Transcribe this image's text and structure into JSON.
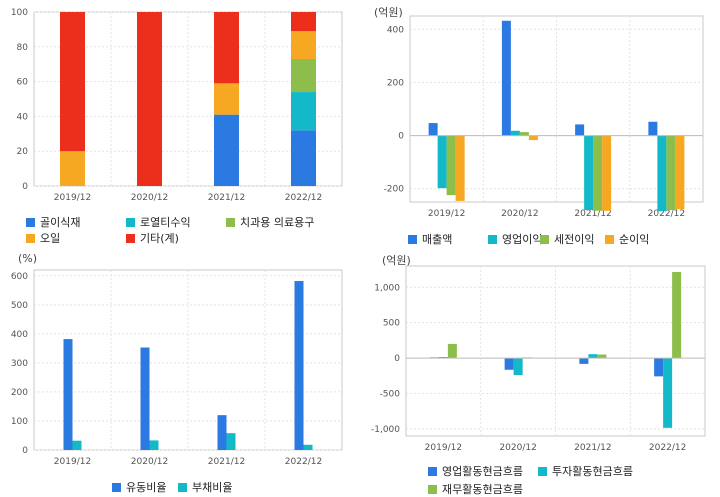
{
  "chart_data": [
    {
      "type": "bar",
      "stacked": true,
      "categories": [
        "2019/12",
        "2020/12",
        "2021/12",
        "2022/12"
      ],
      "ylim": [
        0,
        100
      ],
      "yticks": [
        "0",
        "20",
        "40",
        "60",
        "80",
        "100"
      ],
      "series": [
        {
          "name": "골이식재",
          "color": "#2a7ae2",
          "values": [
            0,
            0,
            41,
            32
          ]
        },
        {
          "name": "로열티수익",
          "color": "#13b9c8",
          "values": [
            0,
            0,
            0,
            22
          ]
        },
        {
          "name": "치과용 의료용구",
          "color": "#8dbd4a",
          "values": [
            0,
            0,
            0,
            19
          ]
        },
        {
          "name": "오일",
          "color": "#f7a823",
          "values": [
            20,
            0,
            18,
            16
          ]
        },
        {
          "name": "기타(계)",
          "color": "#ec2e1c",
          "values": [
            80,
            100,
            41,
            11
          ]
        }
      ]
    },
    {
      "type": "bar",
      "unit": "(억원)",
      "categories": [
        "2019/12",
        "2020/12",
        "2021/12",
        "2022/12"
      ],
      "ylim": [
        -250,
        450
      ],
      "yticks": [
        "-200",
        "0",
        "200",
        "400"
      ],
      "series": [
        {
          "name": "매출액",
          "color": "#2a7ae2",
          "values": [
            47,
            432,
            42,
            52
          ]
        },
        {
          "name": "영업이익",
          "color": "#13b9c8",
          "values": [
            -198,
            18,
            -280,
            -285
          ]
        },
        {
          "name": "세전이익",
          "color": "#8dbd4a",
          "values": [
            -224,
            13,
            -283,
            -280
          ]
        },
        {
          "name": "순이익",
          "color": "#f7a823",
          "values": [
            -246,
            -17,
            -283,
            -277
          ]
        }
      ]
    },
    {
      "type": "bar",
      "unit": "(%)",
      "categories": [
        "2019/12",
        "2020/12",
        "2021/12",
        "2022/12"
      ],
      "ylim": [
        0,
        620
      ],
      "yticks": [
        "0",
        "100",
        "200",
        "300",
        "400",
        "500",
        "600"
      ],
      "series": [
        {
          "name": "유동비율",
          "color": "#2a7ae2",
          "values": [
            382,
            353,
            120,
            582
          ]
        },
        {
          "name": "부채비율",
          "color": "#13b9c8",
          "values": [
            32,
            33,
            58,
            18
          ]
        }
      ]
    },
    {
      "type": "bar",
      "unit": "(억원)",
      "categories": [
        "2019/12",
        "2020/12",
        "2021/12",
        "2022/12"
      ],
      "ylim": [
        -1100,
        1300
      ],
      "yticks": [
        "-1,000",
        "-500",
        "0",
        "500",
        "1,000"
      ],
      "series": [
        {
          "name": "영업활동현금흐름",
          "color": "#2a7ae2",
          "values": [
            10,
            -165,
            -82,
            -258
          ]
        },
        {
          "name": "투자활동현금흐름",
          "color": "#13b9c8",
          "values": [
            15,
            -240,
            55,
            -985
          ]
        },
        {
          "name": "재무활동현금흐름",
          "color": "#8dbd4a",
          "values": [
            200,
            10,
            50,
            1215
          ]
        }
      ]
    }
  ]
}
